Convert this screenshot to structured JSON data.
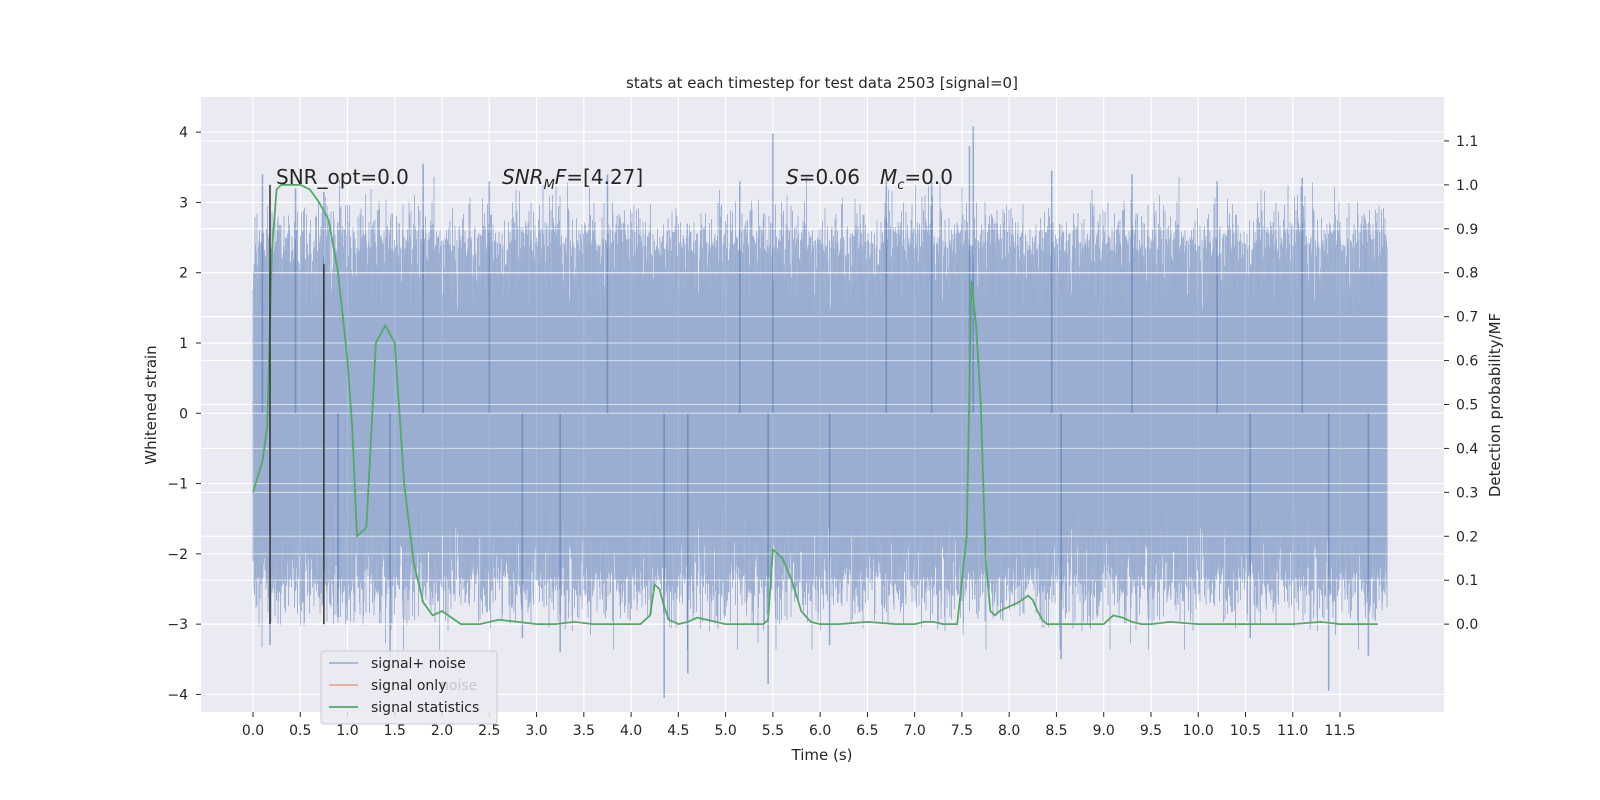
{
  "chart_data": {
    "type": "line",
    "title": "stats at each timestep for test data 2503 [signal=0]",
    "xlabel": "Time (s)",
    "ylabel_left": "Whitened strain",
    "ylabel_right": "Detection probability/MF",
    "xlim": [
      -0.55,
      12.6
    ],
    "ylim_left": [
      -4.25,
      4.5
    ],
    "ylim_right": [
      -0.2,
      1.2
    ],
    "x_ticks": [
      "0.0",
      "0.5",
      "1.0",
      "1.5",
      "2.0",
      "2.5",
      "3.0",
      "3.5",
      "4.0",
      "4.5",
      "5.0",
      "5.5",
      "6.0",
      "6.5",
      "7.0",
      "7.5",
      "8.0",
      "8.5",
      "9.0",
      "9.5",
      "10.0",
      "10.5",
      "11.0",
      "11.5"
    ],
    "y_ticks_left": [
      "4",
      "3",
      "2",
      "1",
      "0",
      "−1",
      "−2",
      "−3",
      "−4"
    ],
    "y_ticks_right": [
      "1.1",
      "1.0",
      "0.9",
      "0.8",
      "0.7",
      "0.6",
      "0.5",
      "0.4",
      "0.3",
      "0.2",
      "0.1",
      "0.0"
    ],
    "grid": true,
    "legend_position": "lower-left",
    "colors": {
      "noise": "#4c72b0",
      "signal_only": "#dd8452",
      "statistics": "#55a868",
      "marker_lines": "#333333",
      "plot_background": "#eaeaf2",
      "grid": "#ffffff"
    },
    "series": [
      {
        "name": "signal+ noise",
        "x_range": [
          0.0,
          12.0
        ],
        "envelope_typical": [
          -2.3,
          2.3
        ],
        "envelope_extreme": [
          -4.1,
          4.1
        ],
        "spikes": [
          {
            "x": 0.1,
            "y": 3.4
          },
          {
            "x": 0.18,
            "y": -3.3
          },
          {
            "x": 0.45,
            "y": 3.2
          },
          {
            "x": 0.75,
            "y": 3.15
          },
          {
            "x": 0.9,
            "y": -2.9
          },
          {
            "x": 1.45,
            "y": -3.6
          },
          {
            "x": 1.8,
            "y": 3.55
          },
          {
            "x": 2.5,
            "y": 3.3
          },
          {
            "x": 2.85,
            "y": -3.2
          },
          {
            "x": 3.25,
            "y": -3.4
          },
          {
            "x": 3.75,
            "y": 3.4
          },
          {
            "x": 4.35,
            "y": -4.05
          },
          {
            "x": 4.6,
            "y": -3.7
          },
          {
            "x": 5.15,
            "y": 3.3
          },
          {
            "x": 5.5,
            "y": 3.98
          },
          {
            "x": 5.45,
            "y": -3.85
          },
          {
            "x": 6.1,
            "y": -3.3
          },
          {
            "x": 6.7,
            "y": 3.3
          },
          {
            "x": 7.18,
            "y": 3.3
          },
          {
            "x": 7.58,
            "y": 3.8
          },
          {
            "x": 7.62,
            "y": 4.08
          },
          {
            "x": 8.45,
            "y": 3.45
          },
          {
            "x": 8.55,
            "y": -3.5
          },
          {
            "x": 9.3,
            "y": 3.4
          },
          {
            "x": 10.2,
            "y": 3.3
          },
          {
            "x": 10.55,
            "y": -3.2
          },
          {
            "x": 11.1,
            "y": 3.35
          },
          {
            "x": 11.38,
            "y": -3.95
          },
          {
            "x": 11.8,
            "y": -3.45
          }
        ]
      },
      {
        "name": "signal only",
        "x": [],
        "y": []
      },
      {
        "name": "signal statistics",
        "axis": "right",
        "x": [
          0.0,
          0.1,
          0.15,
          0.2,
          0.25,
          0.3,
          0.4,
          0.5,
          0.6,
          0.7,
          0.8,
          0.9,
          1.0,
          1.05,
          1.1,
          1.2,
          1.3,
          1.4,
          1.5,
          1.6,
          1.7,
          1.8,
          1.9,
          2.0,
          2.2,
          2.4,
          2.6,
          2.8,
          3.0,
          3.2,
          3.4,
          3.6,
          3.8,
          4.0,
          4.1,
          4.2,
          4.25,
          4.3,
          4.35,
          4.4,
          4.5,
          4.6,
          4.7,
          4.8,
          5.0,
          5.2,
          5.4,
          5.45,
          5.5,
          5.6,
          5.7,
          5.8,
          5.9,
          6.0,
          6.2,
          6.5,
          6.8,
          7.0,
          7.1,
          7.2,
          7.3,
          7.45,
          7.55,
          7.6,
          7.65,
          7.7,
          7.75,
          7.8,
          7.85,
          7.9,
          8.0,
          8.1,
          8.2,
          8.25,
          8.3,
          8.35,
          8.4,
          8.5,
          8.7,
          9.0,
          9.05,
          9.1,
          9.2,
          9.3,
          9.4,
          9.5,
          9.7,
          10.0,
          10.5,
          11.0,
          11.3,
          11.5,
          11.9
        ],
        "y": [
          0.3,
          0.37,
          0.45,
          0.85,
          0.99,
          1.0,
          1.0,
          1.0,
          0.99,
          0.96,
          0.92,
          0.8,
          0.6,
          0.45,
          0.2,
          0.22,
          0.64,
          0.68,
          0.64,
          0.32,
          0.14,
          0.05,
          0.02,
          0.03,
          0.0,
          0.0,
          0.01,
          0.005,
          0.0,
          0.0,
          0.005,
          0.0,
          0.0,
          0.0,
          0.0,
          0.02,
          0.09,
          0.08,
          0.04,
          0.01,
          0.0,
          0.005,
          0.015,
          0.01,
          0.0,
          0.0,
          0.0,
          0.01,
          0.17,
          0.15,
          0.1,
          0.03,
          0.005,
          0.0,
          0.0,
          0.005,
          0.0,
          0.0,
          0.005,
          0.005,
          0.0,
          0.0,
          0.2,
          0.78,
          0.68,
          0.5,
          0.15,
          0.03,
          0.02,
          0.03,
          0.04,
          0.05,
          0.065,
          0.055,
          0.03,
          0.01,
          0.0,
          0.0,
          0.0,
          0.0,
          0.01,
          0.02,
          0.015,
          0.005,
          0.0,
          0.0,
          0.005,
          0.0,
          0.0,
          0.0,
          0.005,
          0.0,
          0.0
        ]
      }
    ],
    "vertical_lines": [
      {
        "x": 0.18,
        "y_top": 1.0,
        "y_bottom": 0.0
      },
      {
        "x": 0.75,
        "y_top": 0.82,
        "y_bottom": 0.0
      }
    ],
    "annotations": {
      "snr_opt": "SNR_opt=0.0",
      "snr_mf_main": "SNR",
      "snr_mf_sub": "M",
      "snr_mf_tail": "F",
      "snr_mf_value": "=[4.27]",
      "s_sym": "S",
      "s_value": "=0.06",
      "mc_sym": "M",
      "mc_sub": "c",
      "mc_value": "=0.0"
    },
    "legend": [
      "signal+ noise",
      "signal only",
      "signal statistics"
    ],
    "legend_ghost_text": "noise"
  }
}
